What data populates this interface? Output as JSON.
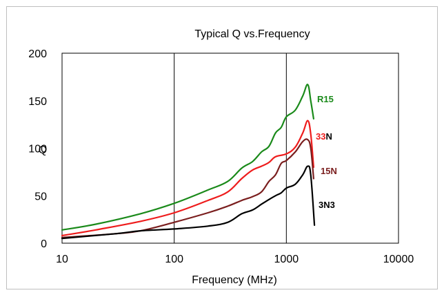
{
  "chart_data": {
    "type": "line",
    "title": "Typical Q vs.Frequency",
    "xlabel": "Frequency (MHz)",
    "ylabel": "Q",
    "x_scale": "log",
    "xlim": [
      10,
      10000
    ],
    "ylim": [
      0,
      200
    ],
    "x_ticks": [
      10,
      100,
      1000,
      10000
    ],
    "x_tick_labels": [
      "10",
      "100",
      "1000",
      "10000"
    ],
    "y_ticks": [
      0,
      50,
      100,
      150,
      200
    ],
    "y_tick_labels": [
      "0",
      "50",
      "100",
      "150",
      "200"
    ],
    "x_gridlines": [
      100,
      1000
    ],
    "grid": "vertical-major-only",
    "legend": "inline-labels-right-of-curves",
    "series": [
      {
        "name": "R15",
        "label_parts": [
          {
            "text": "R15",
            "color": "#1a8a1a"
          }
        ],
        "color": "#1a8a1a",
        "points": [
          [
            10,
            14
          ],
          [
            20,
            20
          ],
          [
            50,
            31
          ],
          [
            100,
            42
          ],
          [
            200,
            56
          ],
          [
            300,
            65
          ],
          [
            400,
            79
          ],
          [
            500,
            86
          ],
          [
            600,
            96
          ],
          [
            700,
            102
          ],
          [
            800,
            116
          ],
          [
            900,
            122
          ],
          [
            1000,
            133
          ],
          [
            1200,
            140
          ],
          [
            1400,
            155
          ],
          [
            1550,
            167
          ],
          [
            1650,
            150
          ],
          [
            1750,
            131
          ]
        ]
      },
      {
        "name": "33N",
        "label_parts": [
          {
            "text": "33",
            "color": "#ee1c1c"
          },
          {
            "text": "N",
            "color": "#000000"
          }
        ],
        "color": "#ee1c1c",
        "points": [
          [
            10,
            8
          ],
          [
            20,
            14
          ],
          [
            50,
            23
          ],
          [
            100,
            32
          ],
          [
            200,
            45
          ],
          [
            300,
            54
          ],
          [
            400,
            68
          ],
          [
            500,
            77
          ],
          [
            600,
            81
          ],
          [
            700,
            85
          ],
          [
            800,
            91
          ],
          [
            1000,
            94
          ],
          [
            1200,
            101
          ],
          [
            1400,
            116
          ],
          [
            1550,
            129
          ],
          [
            1650,
            115
          ],
          [
            1750,
            80
          ]
        ]
      },
      {
        "name": "15N",
        "label_parts": [
          {
            "text": "15N",
            "color": "#7a1e1e"
          }
        ],
        "color": "#7a1e1e",
        "points": [
          [
            10,
            6
          ],
          [
            30,
            10
          ],
          [
            50,
            13
          ],
          [
            100,
            22
          ],
          [
            200,
            32
          ],
          [
            300,
            39
          ],
          [
            400,
            45
          ],
          [
            500,
            49
          ],
          [
            600,
            54
          ],
          [
            700,
            65
          ],
          [
            800,
            72
          ],
          [
            900,
            84
          ],
          [
            1000,
            87
          ],
          [
            1200,
            96
          ],
          [
            1400,
            107
          ],
          [
            1550,
            109
          ],
          [
            1650,
            100
          ],
          [
            1750,
            68
          ]
        ]
      },
      {
        "name": "3N3",
        "label_parts": [
          {
            "text": "3N3",
            "color": "#000000"
          }
        ],
        "color": "#000000",
        "points": [
          [
            10,
            5
          ],
          [
            30,
            10
          ],
          [
            50,
            13
          ],
          [
            100,
            15
          ],
          [
            200,
            18
          ],
          [
            300,
            22
          ],
          [
            400,
            31
          ],
          [
            500,
            35
          ],
          [
            600,
            41
          ],
          [
            700,
            46
          ],
          [
            800,
            50
          ],
          [
            900,
            53
          ],
          [
            1000,
            58
          ],
          [
            1200,
            62
          ],
          [
            1400,
            72
          ],
          [
            1550,
            81
          ],
          [
            1650,
            72
          ],
          [
            1780,
            19
          ]
        ]
      }
    ]
  }
}
